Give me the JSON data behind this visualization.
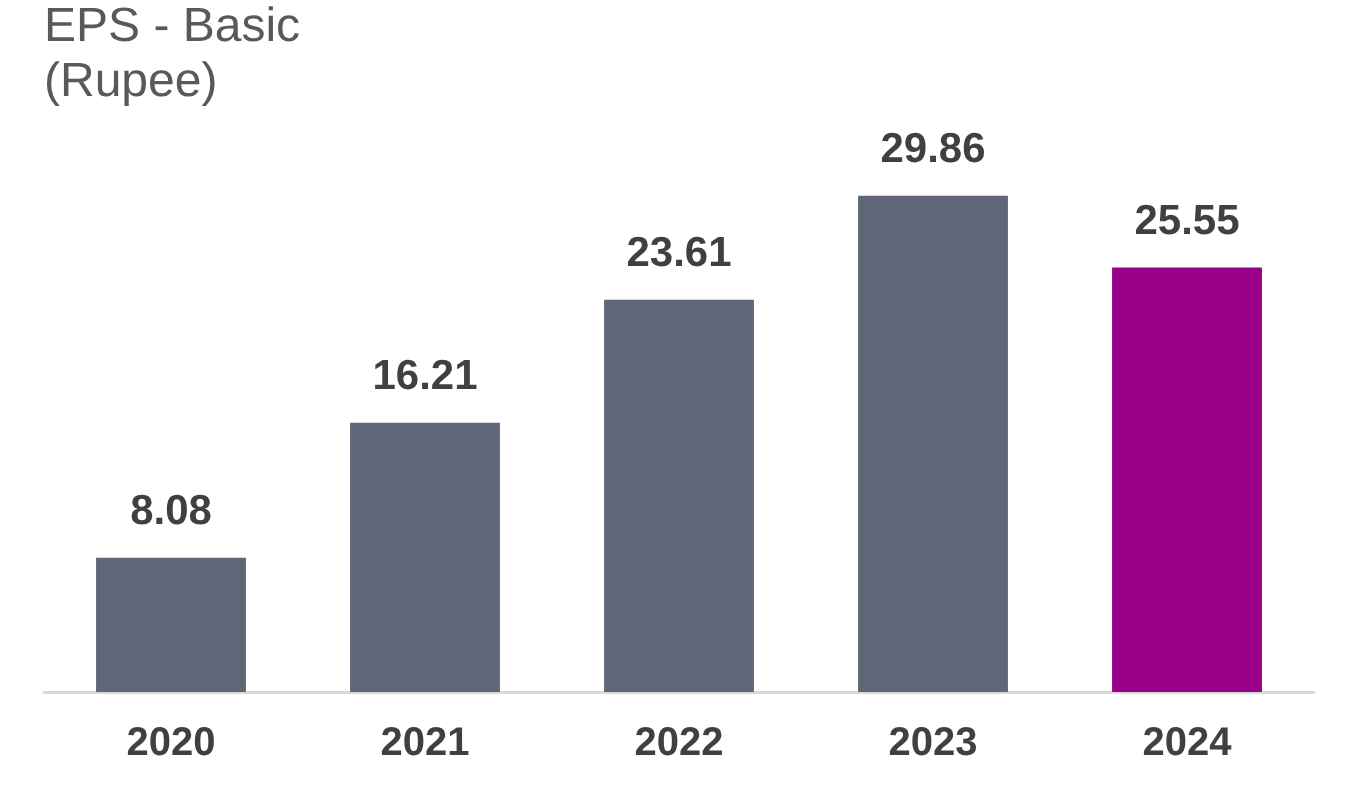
{
  "chart_data": {
    "type": "bar",
    "title": "EPS - Basic\n(Rupee)",
    "categories": [
      "2020",
      "2021",
      "2022",
      "2023",
      "2024"
    ],
    "values": [
      8.08,
      16.21,
      23.61,
      29.86,
      25.55
    ],
    "colors": [
      "#5f6678",
      "#5f6678",
      "#5f6678",
      "#5f6678",
      "#990088"
    ],
    "data_labels": true,
    "grid": false,
    "legend": false
  }
}
